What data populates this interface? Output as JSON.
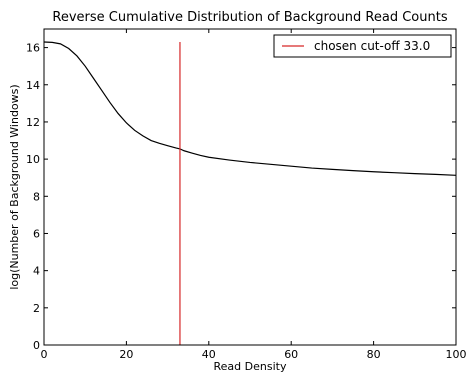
{
  "chart_data": {
    "type": "line",
    "title": "Reverse Cumulative Distribution of Background Read Counts",
    "xlabel": "Read Density",
    "ylabel": "log(Number of Background Windows)",
    "xlim": [
      0,
      100
    ],
    "ylim": [
      0,
      17
    ],
    "xticks": [
      0,
      20,
      40,
      60,
      80,
      100
    ],
    "yticks": [
      0,
      2,
      4,
      6,
      8,
      10,
      12,
      14,
      16
    ],
    "grid": false,
    "legend_position": "top-right",
    "series": [
      {
        "name": "",
        "color": "#000000",
        "x": [
          0,
          2,
          4,
          6,
          8,
          10,
          12,
          14,
          16,
          18,
          20,
          22,
          24,
          26,
          28,
          30,
          32,
          33,
          34,
          36,
          38,
          40,
          45,
          50,
          55,
          60,
          65,
          70,
          75,
          80,
          85,
          90,
          95,
          100
        ],
        "y": [
          16.3,
          16.28,
          16.2,
          15.95,
          15.55,
          15.0,
          14.35,
          13.7,
          13.05,
          12.45,
          11.95,
          11.55,
          11.25,
          11.0,
          10.85,
          10.72,
          10.6,
          10.55,
          10.45,
          10.32,
          10.2,
          10.1,
          9.95,
          9.82,
          9.72,
          9.62,
          9.52,
          9.45,
          9.38,
          9.32,
          9.27,
          9.22,
          9.18,
          9.13
        ]
      }
    ],
    "cutoff": {
      "label": "chosen cut-off 33.0",
      "x": 33.0,
      "y_range": [
        0,
        16.3
      ],
      "color": "#d62728"
    }
  }
}
